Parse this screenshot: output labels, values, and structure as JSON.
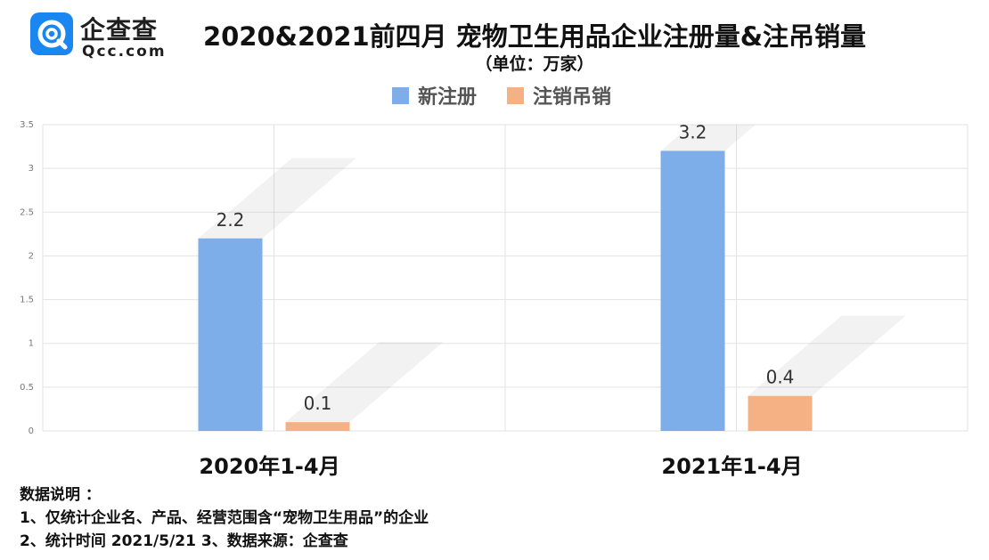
{
  "brand": {
    "name": "企查查",
    "domain": "Qcc.com",
    "logo_color": "#1a86f0"
  },
  "title": "2020&2021前四月 宠物卫生用品企业注册量&注吊销量",
  "subtitle": "（单位：万家）",
  "legend": [
    {
      "label": "新注册",
      "color": "#7eaeea"
    },
    {
      "label": "注销吊销",
      "color": "#f5b183"
    }
  ],
  "chart_data": {
    "type": "bar",
    "categories": [
      "2020年1-4月",
      "2021年1-4月"
    ],
    "series": [
      {
        "name": "新注册",
        "values": [
          2.2,
          3.2
        ],
        "color": "#7eaeea"
      },
      {
        "name": "注销吊销",
        "values": [
          0.1,
          0.4
        ],
        "color": "#f5b183"
      }
    ],
    "y_ticks": [
      "0",
      "0.5",
      "1",
      "1.5",
      "2",
      "2.5",
      "3",
      "3.5"
    ],
    "ylim": [
      0,
      3.5
    ],
    "data_labels": [
      "2.2",
      "3.2",
      "0.1",
      "0.4"
    ],
    "grid": true
  },
  "notes": {
    "heading": "数据说明 ：",
    "line1": "1、仅统计企业名、产品、经营范围含“宠物卫生用品”的企业",
    "line2": "2、统计时间 2021/5/21    3、数据来源：企查查"
  }
}
